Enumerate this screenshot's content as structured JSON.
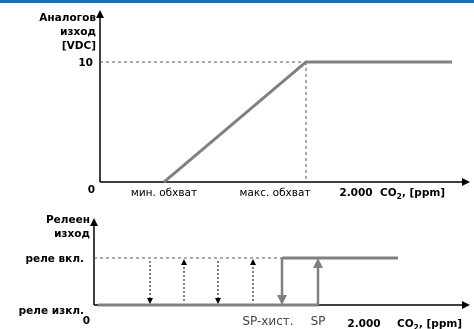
{
  "colors": {
    "top_bar": "#1a6fb0",
    "line": "#808080",
    "text": "#000000"
  },
  "chart_data": [
    {
      "type": "line",
      "ylabel_lines": [
        "Аналогов",
        "изход",
        "[VDC]"
      ],
      "y_tick": "10",
      "origin": "0",
      "x_ticks": {
        "min": "мин. обхват",
        "max": "макс. обхват",
        "end": "2.000"
      },
      "xlabel": {
        "prefix": "CO",
        "sub": "2",
        "suffix": ", [ppm]"
      },
      "series": [
        {
          "x": [
            "мин. обхват",
            "макс. обхват",
            "2.000"
          ],
          "y": [
            0,
            10,
            10
          ]
        }
      ]
    },
    {
      "type": "line",
      "ylabel_lines": [
        "Релеен",
        "изход"
      ],
      "y_ticks": {
        "on": "реле вкл.",
        "off": "реле изкл."
      },
      "origin": "0",
      "x_ticks": {
        "sp_hyst": "SP-хист.",
        "sp": "SP",
        "end": "2.000"
      },
      "xlabel": {
        "prefix": "CO",
        "sub": "2",
        "suffix": ", [ppm]"
      },
      "series": [
        {
          "off_below": "SP",
          "on_above": "SP-хист."
        }
      ]
    }
  ]
}
